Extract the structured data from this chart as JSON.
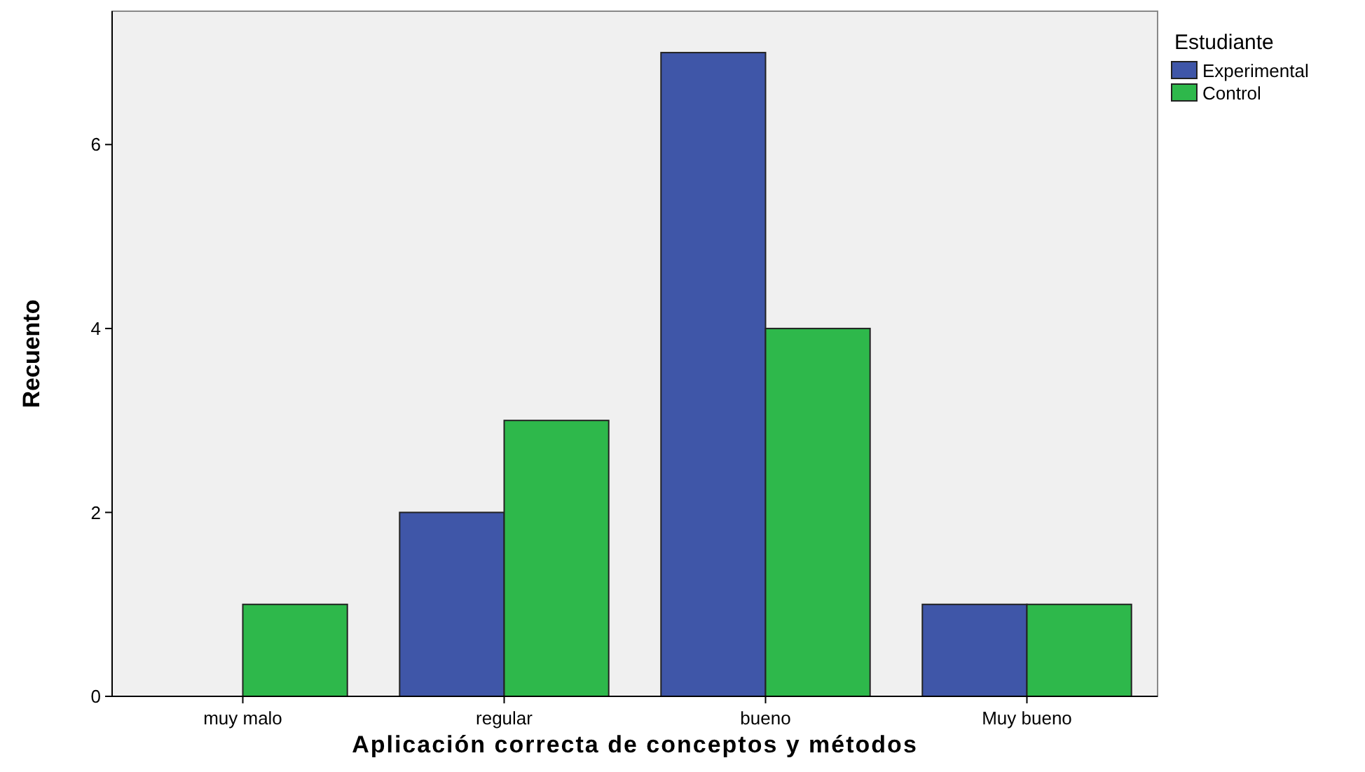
{
  "chart_data": {
    "type": "bar",
    "xlabel": "Aplicación correcta de conceptos y métodos",
    "ylabel": "Recuento",
    "legend_title": "Estudiante",
    "categories": [
      "muy malo",
      "regular",
      "bueno",
      "Muy bueno"
    ],
    "series": [
      {
        "name": "Experimental",
        "color": "#3f56a8",
        "values": [
          0,
          2,
          7,
          1
        ]
      },
      {
        "name": "Control",
        "color": "#2eb84b",
        "values": [
          1,
          3,
          4,
          1
        ]
      }
    ],
    "ylim": [
      0,
      7.45
    ],
    "yticks": [
      0,
      2,
      4,
      6
    ],
    "grid": false,
    "legend": "top right"
  }
}
